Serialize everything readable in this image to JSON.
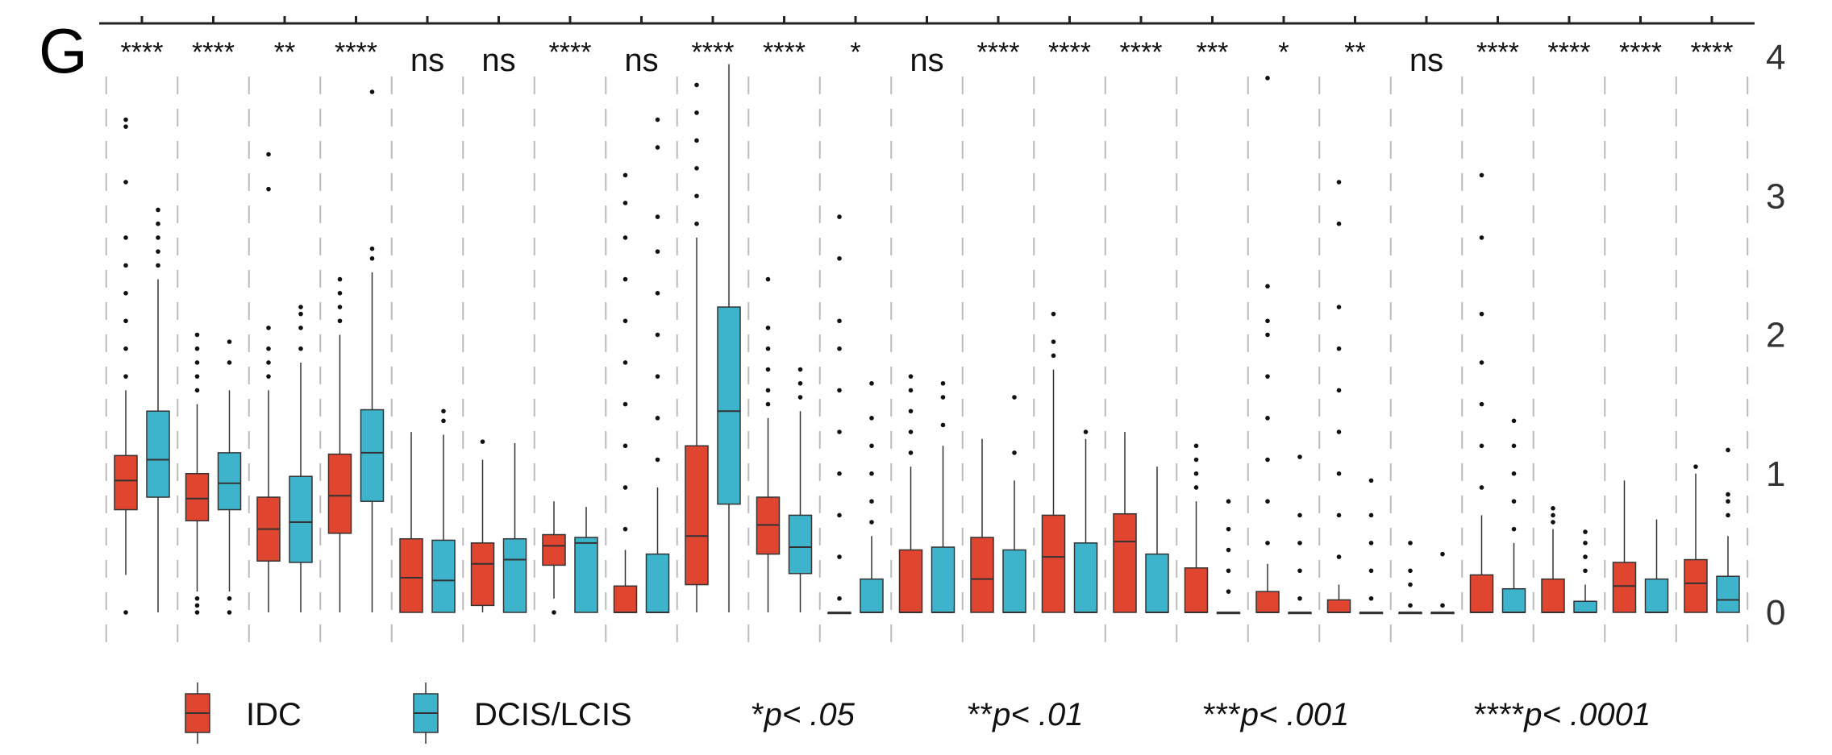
{
  "panel_label": "G",
  "chart_data": {
    "type": "boxplot",
    "title": "",
    "xlabel": "",
    "ylabel": "",
    "ylim": [
      0,
      4
    ],
    "yticks": [
      "0",
      "1",
      "2",
      "3",
      "4"
    ],
    "y_axis_side": "right",
    "grid": "dashed vertical separators",
    "legend_position": "bottom",
    "series_names": [
      "IDC",
      "DCIS/LCIS"
    ],
    "colors": {
      "IDC": "#E0452F",
      "DCIS/LCIS": "#3DB4CC"
    },
    "legend_significance": [
      {
        "stars": "*",
        "text": "p< .05"
      },
      {
        "stars": "**",
        "text": "p< .01"
      },
      {
        "stars": "***",
        "text": "p< .001"
      },
      {
        "stars": "****",
        "text": "p< .0001"
      }
    ],
    "groups": [
      {
        "sig": "****",
        "IDC": {
          "q1": 0.74,
          "med": 0.95,
          "q3": 1.13,
          "lo": 0.27,
          "hi": 1.6,
          "out": [
            0,
            1.7,
            1.9,
            2.1,
            2.3,
            2.5,
            2.7,
            3.1,
            3.5,
            3.55
          ]
        },
        "DCIS": {
          "q1": 0.83,
          "med": 1.1,
          "q3": 1.45,
          "lo": 0,
          "hi": 2.4,
          "out": [
            2.5,
            2.6,
            2.7,
            2.8,
            2.9
          ]
        }
      },
      {
        "sig": "****",
        "IDC": {
          "q1": 0.66,
          "med": 0.82,
          "q3": 1.0,
          "lo": 0.15,
          "hi": 1.5,
          "out": [
            0,
            0.05,
            0.1,
            1.6,
            1.7,
            1.8,
            1.9,
            2.0
          ]
        },
        "DCIS": {
          "q1": 0.74,
          "med": 0.93,
          "q3": 1.15,
          "lo": 0.15,
          "hi": 1.6,
          "out": [
            0,
            0.1,
            1.8,
            1.95
          ]
        }
      },
      {
        "sig": "**",
        "IDC": {
          "q1": 0.37,
          "med": 0.6,
          "q3": 0.83,
          "lo": 0,
          "hi": 1.6,
          "out": [
            1.7,
            1.8,
            1.9,
            2.05,
            3.05,
            3.3
          ]
        },
        "DCIS": {
          "q1": 0.36,
          "med": 0.65,
          "q3": 0.98,
          "lo": 0,
          "hi": 1.8,
          "out": [
            1.9,
            2.05,
            2.15,
            2.2
          ]
        }
      },
      {
        "sig": "****",
        "IDC": {
          "q1": 0.57,
          "med": 0.84,
          "q3": 1.14,
          "lo": 0,
          "hi": 2.0,
          "out": [
            2.1,
            2.2,
            2.3,
            2.4
          ]
        },
        "DCIS": {
          "q1": 0.8,
          "med": 1.15,
          "q3": 1.46,
          "lo": 0,
          "hi": 2.45,
          "out": [
            2.55,
            2.62,
            3.75
          ]
        }
      },
      {
        "sig": "ns",
        "IDC": {
          "q1": 0,
          "med": 0.25,
          "q3": 0.53,
          "lo": 0,
          "hi": 1.3,
          "out": []
        },
        "DCIS": {
          "q1": 0,
          "med": 0.23,
          "q3": 0.52,
          "lo": 0,
          "hi": 1.28,
          "out": [
            1.38,
            1.45
          ]
        }
      },
      {
        "sig": "ns",
        "IDC": {
          "q1": 0.05,
          "med": 0.35,
          "q3": 0.5,
          "lo": 0,
          "hi": 1.1,
          "out": [
            1.23
          ]
        },
        "DCIS": {
          "q1": 0,
          "med": 0.38,
          "q3": 0.53,
          "lo": 0,
          "hi": 1.22,
          "out": []
        }
      },
      {
        "sig": "****",
        "IDC": {
          "q1": 0.34,
          "med": 0.48,
          "q3": 0.56,
          "lo": 0.1,
          "hi": 0.8,
          "out": [
            0
          ]
        },
        "DCIS": {
          "q1": 0,
          "med": 0.5,
          "q3": 0.54,
          "lo": 0,
          "hi": 0.76,
          "out": []
        }
      },
      {
        "sig": "ns",
        "IDC": {
          "q1": 0,
          "med": 0,
          "q3": 0.19,
          "lo": 0,
          "hi": 0.45,
          "out": [
            0.6,
            0.9,
            1.2,
            1.5,
            1.8,
            2.1,
            2.4,
            2.7,
            2.95,
            3.15
          ]
        },
        "DCIS": {
          "q1": 0,
          "med": 0,
          "q3": 0.42,
          "lo": 0,
          "hi": 0.9,
          "out": [
            1.1,
            1.4,
            1.7,
            2.0,
            2.3,
            2.6,
            2.85,
            3.35,
            3.55
          ]
        }
      },
      {
        "sig": "****",
        "IDC": {
          "q1": 0.2,
          "med": 0.55,
          "q3": 1.2,
          "lo": 0,
          "hi": 2.7,
          "out": [
            2.8,
            3.0,
            3.2,
            3.4,
            3.6,
            3.8
          ]
        },
        "DCIS": {
          "q1": 0.78,
          "med": 1.45,
          "q3": 2.2,
          "lo": 0,
          "hi": 3.95,
          "out": []
        }
      },
      {
        "sig": "****",
        "IDC": {
          "q1": 0.42,
          "med": 0.63,
          "q3": 0.83,
          "lo": 0,
          "hi": 1.4,
          "out": [
            1.5,
            1.6,
            1.75,
            1.9,
            2.05,
            2.4
          ]
        },
        "DCIS": {
          "q1": 0.28,
          "med": 0.47,
          "q3": 0.7,
          "lo": 0,
          "hi": 1.45,
          "out": [
            1.55,
            1.65,
            1.75
          ]
        }
      },
      {
        "sig": "*",
        "IDC": {
          "q1": 0,
          "med": 0,
          "q3": 0,
          "lo": 0,
          "hi": 0,
          "out": [
            0.1,
            0.4,
            0.7,
            1.0,
            1.3,
            1.6,
            1.9,
            2.1,
            2.55,
            2.85
          ]
        },
        "DCIS": {
          "q1": 0,
          "med": 0,
          "q3": 0.24,
          "lo": 0,
          "hi": 0.55,
          "out": [
            0.65,
            0.8,
            1.0,
            1.2,
            1.4,
            1.65
          ]
        }
      },
      {
        "sig": "ns",
        "IDC": {
          "q1": 0,
          "med": 0,
          "q3": 0.45,
          "lo": 0,
          "hi": 1.05,
          "out": [
            1.15,
            1.3,
            1.45,
            1.6,
            1.7
          ]
        },
        "DCIS": {
          "q1": 0,
          "med": 0,
          "q3": 0.47,
          "lo": 0,
          "hi": 1.2,
          "out": [
            1.35,
            1.55,
            1.65
          ]
        }
      },
      {
        "sig": "****",
        "IDC": {
          "q1": 0,
          "med": 0.24,
          "q3": 0.54,
          "lo": 0,
          "hi": 1.25,
          "out": []
        },
        "DCIS": {
          "q1": 0,
          "med": 0,
          "q3": 0.45,
          "lo": 0,
          "hi": 0.95,
          "out": [
            1.15,
            1.55
          ]
        }
      },
      {
        "sig": "****",
        "IDC": {
          "q1": 0,
          "med": 0.4,
          "q3": 0.7,
          "lo": 0,
          "hi": 1.75,
          "out": [
            1.85,
            1.95,
            2.15
          ]
        },
        "DCIS": {
          "q1": 0,
          "med": 0,
          "q3": 0.5,
          "lo": 0,
          "hi": 1.25,
          "out": [
            1.3
          ]
        }
      },
      {
        "sig": "****",
        "IDC": {
          "q1": 0,
          "med": 0.51,
          "q3": 0.71,
          "lo": 0,
          "hi": 1.3,
          "out": []
        },
        "DCIS": {
          "q1": 0,
          "med": 0,
          "q3": 0.42,
          "lo": 0,
          "hi": 1.05,
          "out": []
        }
      },
      {
        "sig": "***",
        "IDC": {
          "q1": 0,
          "med": 0,
          "q3": 0.32,
          "lo": 0,
          "hi": 0.8,
          "out": [
            0.9,
            1.0,
            1.1,
            1.2
          ]
        },
        "DCIS": {
          "q1": 0,
          "med": 0,
          "q3": 0,
          "lo": 0,
          "hi": 0,
          "out": [
            0.15,
            0.3,
            0.45,
            0.6,
            0.8
          ]
        }
      },
      {
        "sig": "*",
        "IDC": {
          "q1": 0,
          "med": 0,
          "q3": 0.15,
          "lo": 0,
          "hi": 0.35,
          "out": [
            0.5,
            0.8,
            1.1,
            1.4,
            1.7,
            2.0,
            2.1,
            2.35,
            3.85
          ]
        },
        "DCIS": {
          "q1": 0,
          "med": 0,
          "q3": 0,
          "lo": 0,
          "hi": 0,
          "out": [
            0.1,
            0.3,
            0.5,
            0.7,
            1.12
          ]
        }
      },
      {
        "sig": "**",
        "IDC": {
          "q1": 0,
          "med": 0,
          "q3": 0.09,
          "lo": 0,
          "hi": 0.2,
          "out": [
            0.4,
            0.7,
            1.0,
            1.3,
            1.6,
            1.9,
            2.2,
            2.8,
            3.1
          ]
        },
        "DCIS": {
          "q1": 0,
          "med": 0,
          "q3": 0,
          "lo": 0,
          "hi": 0,
          "out": [
            0.1,
            0.3,
            0.5,
            0.7,
            0.95
          ]
        }
      },
      {
        "sig": "ns",
        "IDC": {
          "q1": 0,
          "med": 0,
          "q3": 0,
          "lo": 0,
          "hi": 0,
          "out": [
            0.05,
            0.2,
            0.3,
            0.5
          ]
        },
        "DCIS": {
          "q1": 0,
          "med": 0,
          "q3": 0,
          "lo": 0,
          "hi": 0,
          "out": [
            0.05,
            0.42
          ]
        }
      },
      {
        "sig": "****",
        "IDC": {
          "q1": 0,
          "med": 0,
          "q3": 0.27,
          "lo": 0,
          "hi": 0.7,
          "out": [
            0.9,
            1.2,
            1.5,
            1.8,
            2.15,
            2.7,
            3.15
          ]
        },
        "DCIS": {
          "q1": 0,
          "med": 0,
          "q3": 0.17,
          "lo": 0,
          "hi": 0.5,
          "out": [
            0.6,
            0.8,
            1.0,
            1.2,
            1.38
          ]
        }
      },
      {
        "sig": "****",
        "IDC": {
          "q1": 0,
          "med": 0,
          "q3": 0.24,
          "lo": 0,
          "hi": 0.6,
          "out": [
            0.65,
            0.7,
            0.75
          ]
        },
        "DCIS": {
          "q1": 0,
          "med": 0,
          "q3": 0.08,
          "lo": 0,
          "hi": 0.2,
          "out": [
            0.3,
            0.4,
            0.5,
            0.58
          ]
        }
      },
      {
        "sig": "****",
        "IDC": {
          "q1": 0,
          "med": 0.19,
          "q3": 0.36,
          "lo": 0,
          "hi": 0.95,
          "out": []
        },
        "DCIS": {
          "q1": 0,
          "med": 0,
          "q3": 0.24,
          "lo": 0,
          "hi": 0.67,
          "out": []
        }
      },
      {
        "sig": "****",
        "IDC": {
          "q1": 0,
          "med": 0.21,
          "q3": 0.38,
          "lo": 0,
          "hi": 1.0,
          "out": [
            1.05
          ]
        },
        "DCIS": {
          "q1": 0,
          "med": 0.09,
          "q3": 0.26,
          "lo": 0,
          "hi": 0.55,
          "out": [
            0.7,
            0.8,
            0.85,
            1.17
          ]
        }
      }
    ]
  }
}
